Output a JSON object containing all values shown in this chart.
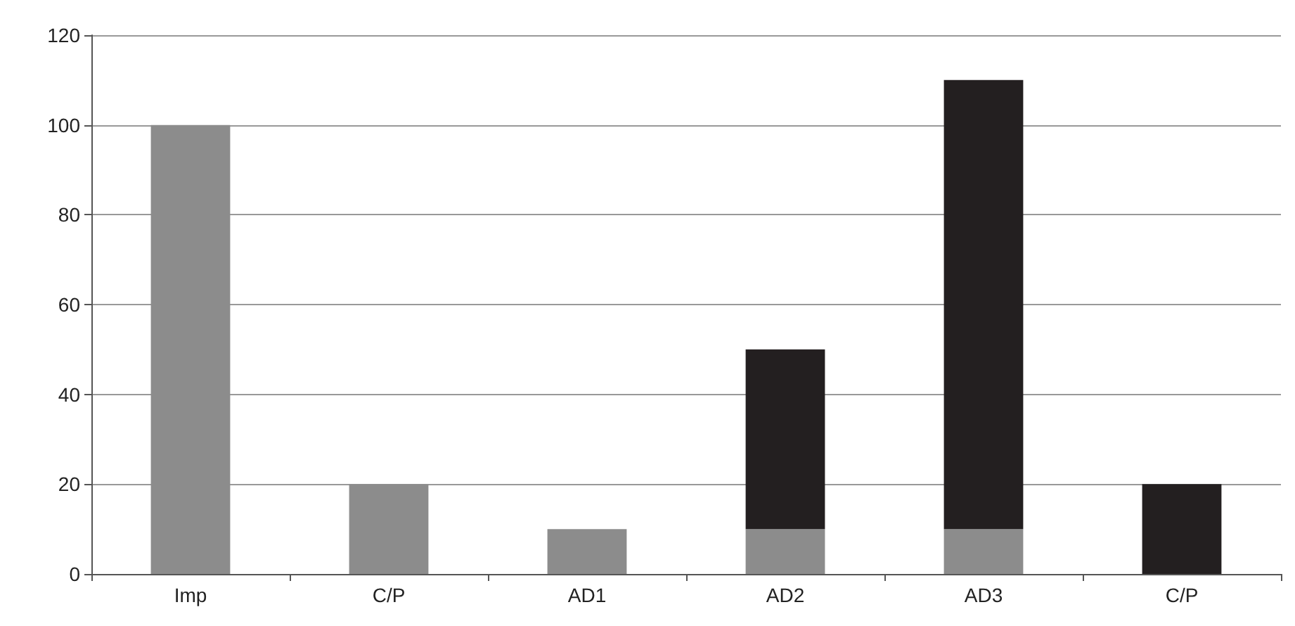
{
  "chart_data": {
    "type": "bar",
    "stacked": true,
    "categories": [
      "Imp",
      "C/P",
      "AD1",
      "AD2",
      "AD3",
      "C/P"
    ],
    "series": [
      {
        "color": "#8c8c8c",
        "values": [
          100,
          20,
          10,
          10,
          10,
          null
        ]
      },
      {
        "color": "#231f20",
        "values": [
          null,
          null,
          null,
          40,
          100,
          20
        ]
      }
    ],
    "ylim": [
      0,
      120
    ],
    "yticks": [
      0,
      20,
      40,
      60,
      80,
      100,
      120
    ],
    "grid": "y"
  }
}
